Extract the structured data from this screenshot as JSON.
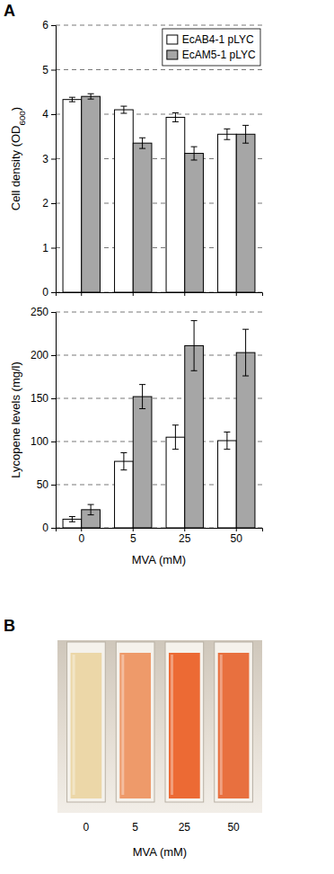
{
  "chart_data": [
    {
      "type": "bar",
      "categories": [
        "0",
        "5",
        "25",
        "50"
      ],
      "y_label": "Cell density (OD600)",
      "ylim": [
        0,
        6
      ],
      "yticks": [
        0,
        1,
        2,
        3,
        4,
        5,
        6
      ],
      "grid": true,
      "legend": "top-right",
      "tick_labels": "y",
      "series": [
        {
          "name": "EcAB4-1 pLYC",
          "color": "#ffffff",
          "values": [
            4.33,
            4.1,
            3.93,
            3.55
          ],
          "errors": [
            0.05,
            0.08,
            0.1,
            0.12
          ]
        },
        {
          "name": "EcAM5-1 pLYC",
          "color": "#a6a6a6",
          "values": [
            4.4,
            3.35,
            3.12,
            3.55
          ],
          "errors": [
            0.06,
            0.12,
            0.15,
            0.2
          ]
        }
      ]
    },
    {
      "type": "bar",
      "categories": [
        "0",
        "5",
        "25",
        "50"
      ],
      "x_label": "MVA (mM)",
      "y_label": "Lycopene levels (mg/l)",
      "ylim": [
        0,
        250
      ],
      "yticks": [
        0,
        50,
        100,
        150,
        200,
        250
      ],
      "grid": true,
      "series": [
        {
          "color": "#ffffff",
          "values": [
            10,
            77,
            105,
            101
          ],
          "errors": [
            3,
            10,
            14,
            10
          ]
        },
        {
          "color": "#a6a6a6",
          "values": [
            21,
            152,
            211,
            203
          ],
          "errors": [
            6,
            14,
            29,
            27
          ]
        }
      ]
    }
  ],
  "panel_labels": [
    "A",
    "B"
  ],
  "photo": {
    "labels": [
      "0",
      "5",
      "25",
      "50"
    ],
    "x_label": "MVA (mM)"
  }
}
